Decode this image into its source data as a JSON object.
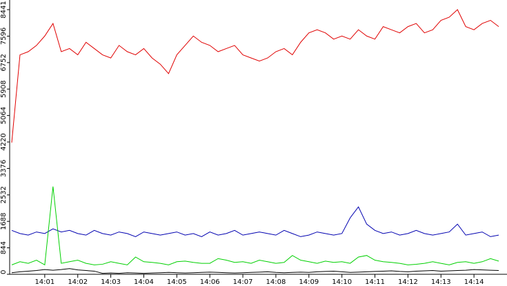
{
  "chart_data": {
    "type": "line",
    "x": [
      0,
      0.25,
      0.5,
      0.75,
      1,
      1.25,
      1.5,
      1.75,
      2,
      2.25,
      2.5,
      2.75,
      3,
      3.25,
      3.5,
      3.75,
      4,
      4.25,
      4.5,
      4.75,
      5,
      5.25,
      5.5,
      5.75,
      6,
      6.25,
      6.5,
      6.75,
      7,
      7.25,
      7.5,
      7.75,
      8,
      8.25,
      8.5,
      8.75,
      9,
      9.25,
      9.5,
      9.75,
      10,
      10.25,
      10.5,
      10.75,
      11,
      11.25,
      11.5,
      11.75,
      12,
      12.25,
      12.5,
      12.75,
      13,
      13.25,
      13.5,
      13.75,
      14,
      14.25,
      14.5,
      14.75
    ],
    "series": [
      {
        "color": "#e00000",
        "values": [
          4200,
          7000,
          7100,
          7300,
          7600,
          8000,
          7100,
          7200,
          7000,
          7400,
          7200,
          7000,
          6900,
          7300,
          7100,
          7000,
          7200,
          6900,
          6700,
          6400,
          7000,
          7300,
          7600,
          7400,
          7300,
          7100,
          7200,
          7300,
          7000,
          6900,
          6800,
          6900,
          7100,
          7200,
          7000,
          7400,
          7700,
          7800,
          7700,
          7500,
          7600,
          7500,
          7800,
          7600,
          7500,
          7900,
          7800,
          7700,
          7900,
          8000,
          7700,
          7800,
          8100,
          8200,
          8441,
          7900,
          7800,
          8000,
          8100,
          7900
        ]
      },
      {
        "color": "#0000b0",
        "values": [
          1400,
          1300,
          1250,
          1350,
          1300,
          1450,
          1350,
          1400,
          1300,
          1250,
          1400,
          1300,
          1250,
          1350,
          1300,
          1200,
          1350,
          1300,
          1250,
          1300,
          1350,
          1250,
          1300,
          1200,
          1350,
          1250,
          1300,
          1400,
          1250,
          1300,
          1350,
          1300,
          1250,
          1400,
          1300,
          1200,
          1250,
          1350,
          1300,
          1250,
          1300,
          1800,
          2150,
          1600,
          1400,
          1300,
          1350,
          1250,
          1300,
          1400,
          1300,
          1250,
          1300,
          1350,
          1600,
          1250,
          1300,
          1350,
          1200,
          1250
        ]
      },
      {
        "color": "#00d000",
        "values": [
          300,
          400,
          350,
          450,
          300,
          2800,
          350,
          400,
          450,
          350,
          300,
          320,
          400,
          350,
          300,
          550,
          400,
          380,
          350,
          300,
          400,
          420,
          380,
          350,
          350,
          500,
          450,
          380,
          400,
          350,
          450,
          400,
          350,
          380,
          600,
          450,
          400,
          350,
          420,
          380,
          400,
          350,
          550,
          600,
          450,
          400,
          380,
          350,
          300,
          320,
          350,
          400,
          350,
          300,
          380,
          400,
          350,
          400,
          500,
          420
        ]
      },
      {
        "color": "#000000",
        "values": [
          50,
          80,
          100,
          120,
          150,
          130,
          150,
          180,
          140,
          120,
          100,
          30,
          40,
          30,
          50,
          40,
          30,
          40,
          50,
          60,
          50,
          40,
          50,
          60,
          70,
          60,
          50,
          40,
          50,
          60,
          70,
          80,
          60,
          50,
          60,
          70,
          60,
          80,
          90,
          100,
          80,
          60,
          70,
          80,
          90,
          100,
          110,
          90,
          80,
          100,
          110,
          120,
          100,
          110,
          120,
          130,
          150,
          140,
          130,
          120
        ]
      }
    ],
    "xlim": [
      0,
      15
    ],
    "xticks": [
      {
        "value": 1,
        "label": "14:01"
      },
      {
        "value": 2,
        "label": "14:02"
      },
      {
        "value": 3,
        "label": "14:03"
      },
      {
        "value": 4,
        "label": "14:04"
      },
      {
        "value": 5,
        "label": "14:05"
      },
      {
        "value": 6,
        "label": "14:06"
      },
      {
        "value": 7,
        "label": "14:07"
      },
      {
        "value": 8,
        "label": "14:08"
      },
      {
        "value": 9,
        "label": "14:09"
      },
      {
        "value": 10,
        "label": "14:10"
      },
      {
        "value": 11,
        "label": "14:11"
      },
      {
        "value": 12,
        "label": "14:12"
      },
      {
        "value": 13,
        "label": "14:13"
      },
      {
        "value": 14,
        "label": "14:14"
      }
    ],
    "ylim": [
      0,
      8441
    ],
    "yticks": [
      0,
      844,
      1688,
      2532,
      3376,
      4220,
      5064,
      5908,
      6752,
      7596,
      8441
    ]
  }
}
